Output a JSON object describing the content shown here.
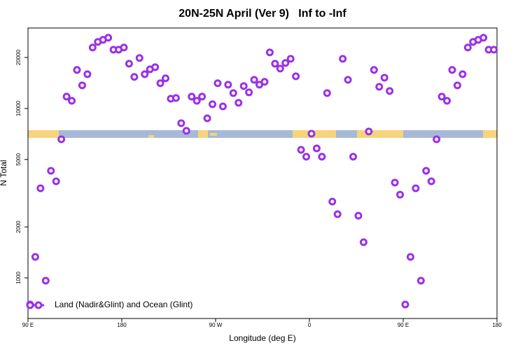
{
  "chart_data": {
    "type": "scatter",
    "title": "20N-25N April (Ver 9)   Inf to -Inf",
    "xlabel": "Longitude (deg E)",
    "ylabel": "N Total",
    "xlim": [
      90,
      540
    ],
    "ylim": [
      576,
      29850
    ],
    "log_y": true,
    "xticks": [
      {
        "value": 90,
        "label": "90 E"
      },
      180,
      {
        "value": 270,
        "label": "90 W"
      },
      {
        "value": 360,
        "label": "0"
      },
      {
        "value": 450,
        "label": "90 E"
      },
      {
        "value": 540,
        "label": "180"
      }
    ],
    "yticks": [
      1000,
      2000,
      5000,
      10000,
      20000
    ],
    "legend": "bottom-left",
    "series": [
      {
        "name": "Land (Nadir&Glint) and Ocean (Glint)",
        "color": "#9b30e8",
        "x": [
          92,
          97,
          102,
          107,
          112,
          117,
          122,
          127,
          132,
          137,
          142,
          147,
          152,
          157,
          162,
          167,
          172,
          177,
          182,
          187,
          192,
          197,
          202,
          207,
          212,
          217,
          222,
          227,
          232,
          237,
          242,
          247,
          252,
          257,
          262,
          267,
          272,
          277,
          282,
          287,
          292,
          297,
          302,
          307,
          312,
          317,
          322,
          327,
          332,
          337,
          342,
          347,
          352,
          357,
          362,
          367,
          372,
          377,
          382,
          387,
          392,
          397,
          402,
          407,
          412,
          417,
          422,
          427,
          432,
          437,
          442,
          447,
          452,
          457,
          462,
          467,
          472,
          477,
          482,
          487,
          492,
          497,
          502,
          507,
          512,
          517,
          522,
          527,
          532,
          537
        ],
        "values": [
          697,
          1331,
          3381,
          963,
          4287,
          3717,
          6580,
          11750,
          11100,
          16880,
          13690,
          15930,
          22890,
          24700,
          25410,
          26150,
          22230,
          22230,
          22890,
          18380,
          15350,
          19850,
          15930,
          17030,
          17530,
          14090,
          15060,
          11420,
          11530,
          8190,
          7380,
          11750,
          11100,
          11750,
          8750,
          10590,
          14090,
          10290,
          13810,
          12330,
          10800,
          13560,
          12450,
          14770,
          13810,
          14360,
          21420,
          18380,
          17200,
          18560,
          19650,
          15490,
          5700,
          5190,
          7100,
          5810,
          5190,
          12330,
          2820,
          2377,
          19650,
          14770,
          5190,
          2330,
          1624,
          7310,
          16880,
          13430,
          15200,
          12680,
          3650,
          3100,
          697,
          1331,
          3381,
          963,
          4287,
          3717,
          6580,
          11750,
          11100,
          16880,
          13690,
          15930,
          22890,
          24700,
          25410,
          26150,
          22230,
          22230
        ]
      }
    ]
  }
}
